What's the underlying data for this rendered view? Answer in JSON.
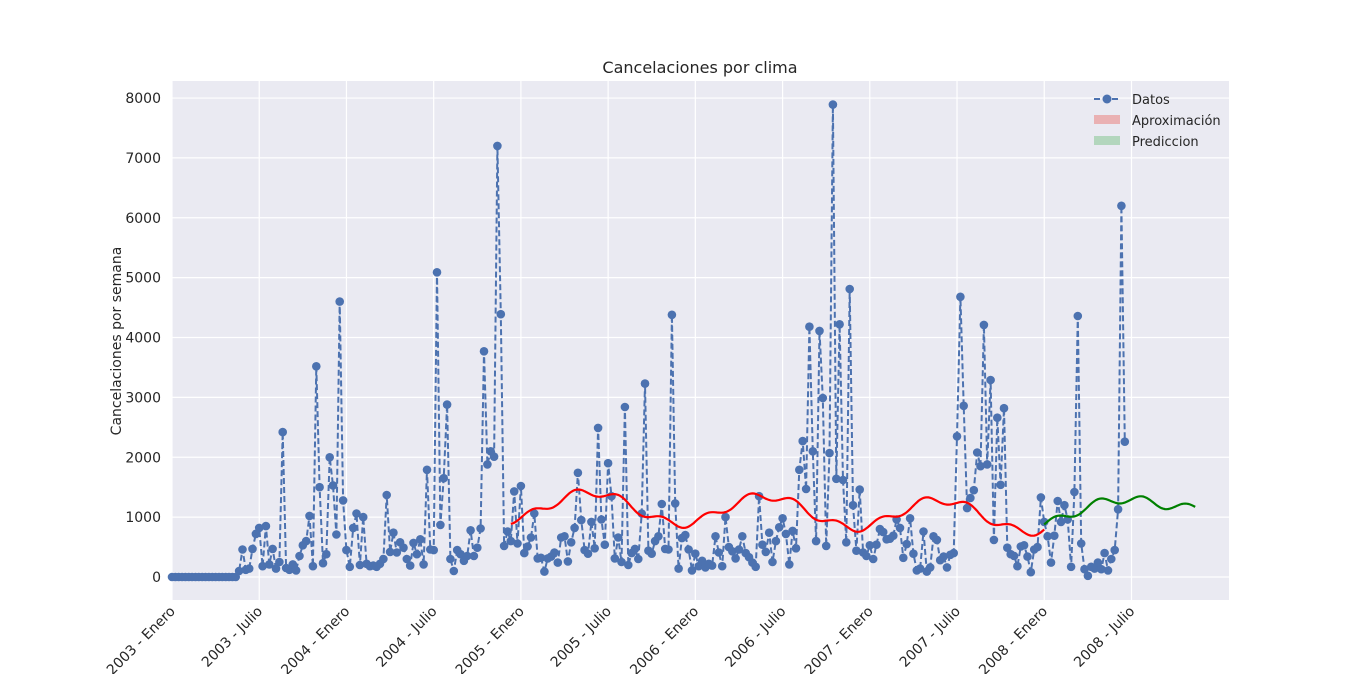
{
  "chart_data": {
    "type": "line",
    "title": "Cancelaciones por clima",
    "xlabel": "",
    "ylabel": "Cancelaciones por semana",
    "ylim": [
      -400,
      8300
    ],
    "xlim": [
      0,
      308
    ],
    "grid": true,
    "legend_position": "top-right",
    "x_tick_positions": [
      0,
      26,
      52,
      78,
      104,
      130,
      156,
      182,
      208,
      234,
      260,
      286
    ],
    "x_tick_labels": [
      "2003 - Enero",
      "2003 - Julio",
      "2004 - Enero",
      "2004 - Julio",
      "2005 - Enero",
      "2005 - Julio",
      "2006 - Enero",
      "2006 - Julio",
      "2007 - Enero",
      "2007 - Julio",
      "2008 - Enero",
      "2008 - Julio"
    ],
    "y_ticks": [
      0,
      1000,
      2000,
      3000,
      4000,
      5000,
      6000,
      7000,
      8000
    ],
    "y_tick_labels": [
      "0",
      "1000",
      "2000",
      "3000",
      "4000",
      "5000",
      "6000",
      "7000",
      "8000"
    ],
    "series": [
      {
        "name": "Datos",
        "color": "#4c72b0",
        "style": "dashed-markers",
        "x_start": 0,
        "values": [
          0,
          0,
          0,
          0,
          0,
          0,
          0,
          0,
          0,
          0,
          0,
          0,
          0,
          0,
          0,
          0,
          0,
          0,
          0,
          0,
          100,
          460,
          120,
          140,
          470,
          720,
          820,
          180,
          850,
          210,
          470,
          140,
          250,
          2420,
          150,
          120,
          210,
          110,
          350,
          530,
          600,
          1020,
          180,
          3520,
          1500,
          230,
          380,
          2000,
          1530,
          710,
          4600,
          1280,
          450,
          170,
          820,
          1060,
          200,
          1000,
          220,
          180,
          190,
          170,
          220,
          300,
          1370,
          420,
          740,
          410,
          580,
          490,
          300,
          190,
          570,
          380,
          630,
          210,
          1790,
          460,
          450,
          5090,
          870,
          1650,
          2880,
          300,
          100,
          450,
          380,
          270,
          350,
          780,
          350,
          490,
          810,
          3770,
          1880,
          2100,
          2010,
          7200,
          4390,
          520,
          760,
          600,
          1430,
          560,
          1520,
          400,
          510,
          660,
          1060,
          310,
          320,
          90,
          310,
          340,
          410,
          240,
          660,
          680,
          260,
          580,
          820,
          1740,
          950,
          450,
          390,
          920,
          480,
          2490,
          960,
          540,
          1900,
          1350,
          310,
          660,
          250,
          2840,
          200,
          400,
          470,
          300,
          1060,
          3230,
          440,
          390,
          600,
          680,
          1220,
          470,
          460,
          4380,
          1230,
          140,
          650,
          700,
          460,
          110,
          390,
          180,
          270,
          160,
          220,
          190,
          680,
          410,
          180,
          1000,
          500,
          430,
          310,
          460,
          680,
          400,
          330,
          240,
          170,
          1350,
          540,
          420,
          740,
          250,
          600,
          830,
          980,
          720,
          210,
          770,
          480,
          1790,
          2270,
          1470,
          4180,
          2100,
          600,
          4110,
          2990,
          520,
          2070,
          7890,
          1640,
          4220,
          1620,
          580,
          4810,
          1200,
          440,
          1460,
          410,
          350,
          530,
          300,
          540,
          800,
          750,
          630,
          640,
          690,
          960,
          820,
          320,
          550,
          980,
          390,
          110,
          140,
          760,
          90,
          160,
          680,
          620,
          280,
          340,
          160,
          370,
          400,
          2350,
          4680,
          2860,
          1150,
          1320,
          1450,
          2080,
          1850,
          4210,
          1880,
          3290,
          620,
          2660,
          1540,
          2820,
          490,
          380,
          350,
          180,
          510,
          530,
          340,
          80,
          460,
          500,
          1330,
          920,
          680,
          240,
          690,
          1270,
          920,
          1200,
          960,
          170,
          1420,
          4360,
          560,
          130,
          20,
          170,
          140,
          240,
          130,
          400,
          110,
          300,
          450,
          1130,
          6200,
          2260
        ]
      },
      {
        "name": "Aproximación",
        "color": "#ff0000",
        "style": "line",
        "x": [
          101,
          260
        ],
        "trend": [
          1200,
          1000
        ],
        "seasonal_amplitude": 250
      },
      {
        "name": "Prediccion",
        "color": "#008000",
        "style": "line",
        "x": [
          260,
          305
        ],
        "trend": [
          1000,
          1300
        ],
        "seasonal_amplitude": 150
      }
    ],
    "legend": [
      {
        "label": "Datos",
        "color": "#4c72b0",
        "kind": "line-marker"
      },
      {
        "label": "Aproximación",
        "color": "#eab1b3",
        "kind": "patch"
      },
      {
        "label": "Prediccion",
        "color": "#b3d6bd",
        "kind": "patch"
      }
    ]
  }
}
